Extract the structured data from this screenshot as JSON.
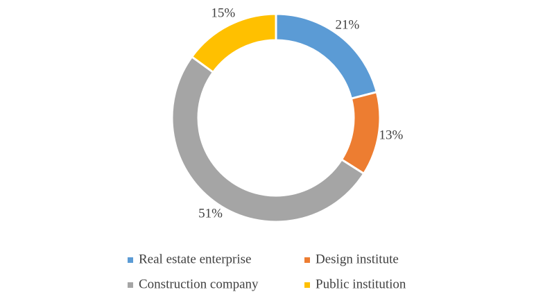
{
  "chart_data": {
    "type": "donut",
    "categories": [
      "Real estate enterprise",
      "Design institute",
      "Construction company",
      "Public institution"
    ],
    "values": [
      21,
      13,
      51,
      15
    ],
    "value_labels": [
      "21%",
      "13%",
      "51%",
      "15%"
    ],
    "colors": [
      "#5b9bd5",
      "#ed7d31",
      "#a5a5a5",
      "#ffc000"
    ],
    "legend": "bottom"
  }
}
